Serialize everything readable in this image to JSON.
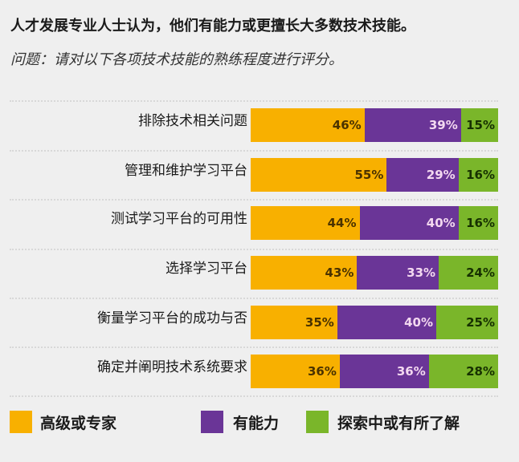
{
  "chart_data": {
    "type": "bar",
    "orientation": "horizontal",
    "stacked": true,
    "title": "人才发展专业人士认为，他们有能力或更擅长大多数技术技能。",
    "subtitle": "问题：请对以下各项技术技能的熟练程度进行评分。",
    "categories": [
      "排除技术相关问题",
      "管理和维护学习平台",
      "测试学习平台的可用性",
      "选择学习平台",
      "衡量学习平台的成功与否",
      "确定并阐明技术系统要求"
    ],
    "series": [
      {
        "name": "高级或专家",
        "color": "#f8b000",
        "label_color": "#4a3200",
        "values": [
          46,
          55,
          44,
          43,
          35,
          36
        ]
      },
      {
        "name": "有能力",
        "color": "#6a3597",
        "label_color": "#f3d8f0",
        "values": [
          39,
          29,
          40,
          33,
          40,
          36
        ]
      },
      {
        "name": "探索中或有所了解",
        "color": "#7ab62a",
        "label_color": "#163000",
        "values": [
          15,
          16,
          16,
          24,
          25,
          28
        ]
      }
    ],
    "value_suffix": "%",
    "xlim": [
      0,
      100
    ],
    "legend": "bottom",
    "grid": false
  }
}
